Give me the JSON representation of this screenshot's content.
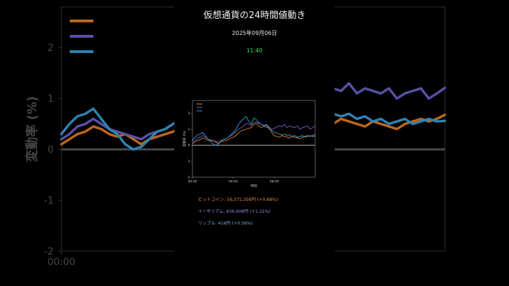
{
  "header": {
    "title": "仮想通貨の24時間値動き",
    "date": "2025年09月06日",
    "time": "11:40"
  },
  "prices": {
    "btc": "ビットコイン: 16,371,356円 (+0.68%)",
    "eth": "イーサリアム: 636,608円 (+1.21%)",
    "xrp": "リップル: 416円 (+0.56%)"
  },
  "colors": {
    "btc": "#e67e22",
    "eth": "#6c63c9",
    "xrp": "#3aa0d6",
    "background": "#000000",
    "time_text": "#35e06a"
  },
  "chart_data": {
    "type": "line",
    "title": "",
    "xlabel": "時刻",
    "ylabel": "変動率 (%)",
    "ylim": [
      -2,
      2.8
    ],
    "yticks": [
      -2,
      -1,
      0,
      1,
      2
    ],
    "xticks": [
      "00:00",
      "04:00",
      "08:00"
    ],
    "xtick_positions": [
      0,
      4,
      8
    ],
    "xlim": [
      0,
      12
    ],
    "grid": false,
    "legend": "top-left",
    "zero_line": true,
    "series": [
      {
        "key": "btc",
        "x": [
          0,
          0.25,
          0.5,
          0.75,
          1,
          1.25,
          1.5,
          1.75,
          2,
          2.25,
          2.5,
          2.75,
          3,
          3.25,
          3.5,
          3.75,
          4,
          4.25,
          4.5,
          4.75,
          5,
          5.25,
          5.5,
          5.75,
          6,
          6.25,
          6.5,
          6.75,
          7,
          7.25,
          7.5,
          7.75,
          8,
          8.25,
          8.5,
          8.75,
          9,
          9.25,
          9.5,
          9.75,
          10,
          10.25,
          10.5,
          10.75,
          11,
          11.25,
          11.5,
          11.75,
          12
        ],
        "values": [
          0.1,
          0.2,
          0.3,
          0.35,
          0.45,
          0.4,
          0.3,
          0.25,
          0.3,
          0.2,
          0.1,
          0.2,
          0.25,
          0.3,
          0.35,
          0.45,
          0.5,
          0.6,
          0.75,
          0.9,
          0.95,
          1.0,
          1.05,
          1.1,
          1.3,
          1.35,
          1.2,
          1.1,
          1.2,
          1.1,
          1.15,
          0.8,
          0.6,
          0.55,
          0.5,
          0.6,
          0.55,
          0.5,
          0.45,
          0.55,
          0.5,
          0.45,
          0.4,
          0.5,
          0.55,
          0.6,
          0.55,
          0.6,
          0.68
        ]
      },
      {
        "key": "eth",
        "x": [
          0,
          0.25,
          0.5,
          0.75,
          1,
          1.25,
          1.5,
          1.75,
          2,
          2.25,
          2.5,
          2.75,
          3,
          3.25,
          3.5,
          3.75,
          4,
          4.25,
          4.5,
          4.75,
          5,
          5.25,
          5.5,
          5.75,
          6,
          6.25,
          6.5,
          6.75,
          7,
          7.25,
          7.5,
          7.75,
          8,
          8.25,
          8.5,
          8.75,
          9,
          9.25,
          9.5,
          9.75,
          10,
          10.25,
          10.5,
          10.75,
          11,
          11.25,
          11.5,
          11.75,
          12
        ],
        "values": [
          0.2,
          0.3,
          0.45,
          0.5,
          0.6,
          0.5,
          0.4,
          0.35,
          0.3,
          0.25,
          0.2,
          0.3,
          0.35,
          0.4,
          0.5,
          0.6,
          0.7,
          0.85,
          1.0,
          1.1,
          1.2,
          1.35,
          1.3,
          1.25,
          1.4,
          1.45,
          1.35,
          1.3,
          1.25,
          1.3,
          1.1,
          1.0,
          1.05,
          1.15,
          1.2,
          1.15,
          1.3,
          1.1,
          1.2,
          1.15,
          1.1,
          1.2,
          1.0,
          1.1,
          1.15,
          1.2,
          1.0,
          1.1,
          1.21
        ]
      },
      {
        "key": "xrp",
        "x": [
          0,
          0.25,
          0.5,
          0.75,
          1,
          1.25,
          1.5,
          1.75,
          2,
          2.25,
          2.5,
          2.75,
          3,
          3.25,
          3.5,
          3.75,
          4,
          4.25,
          4.5,
          4.75,
          5,
          5.25,
          5.5,
          5.75,
          6,
          6.25,
          6.5,
          6.75,
          7,
          7.25,
          7.5,
          7.75,
          8,
          8.25,
          8.5,
          8.75,
          9,
          9.25,
          9.5,
          9.75,
          10,
          10.25,
          10.5,
          10.75,
          11,
          11.25,
          11.5,
          11.75,
          12
        ],
        "values": [
          0.3,
          0.5,
          0.65,
          0.7,
          0.8,
          0.6,
          0.4,
          0.3,
          0.1,
          0.0,
          0.05,
          0.2,
          0.35,
          0.4,
          0.5,
          0.65,
          0.8,
          1.0,
          1.3,
          1.5,
          1.65,
          1.8,
          1.5,
          1.3,
          1.7,
          1.6,
          1.4,
          1.3,
          1.2,
          1.25,
          1.0,
          0.95,
          0.8,
          0.75,
          0.7,
          0.65,
          0.7,
          0.6,
          0.65,
          0.55,
          0.6,
          0.5,
          0.55,
          0.6,
          0.5,
          0.55,
          0.6,
          0.55,
          0.56
        ]
      }
    ]
  }
}
